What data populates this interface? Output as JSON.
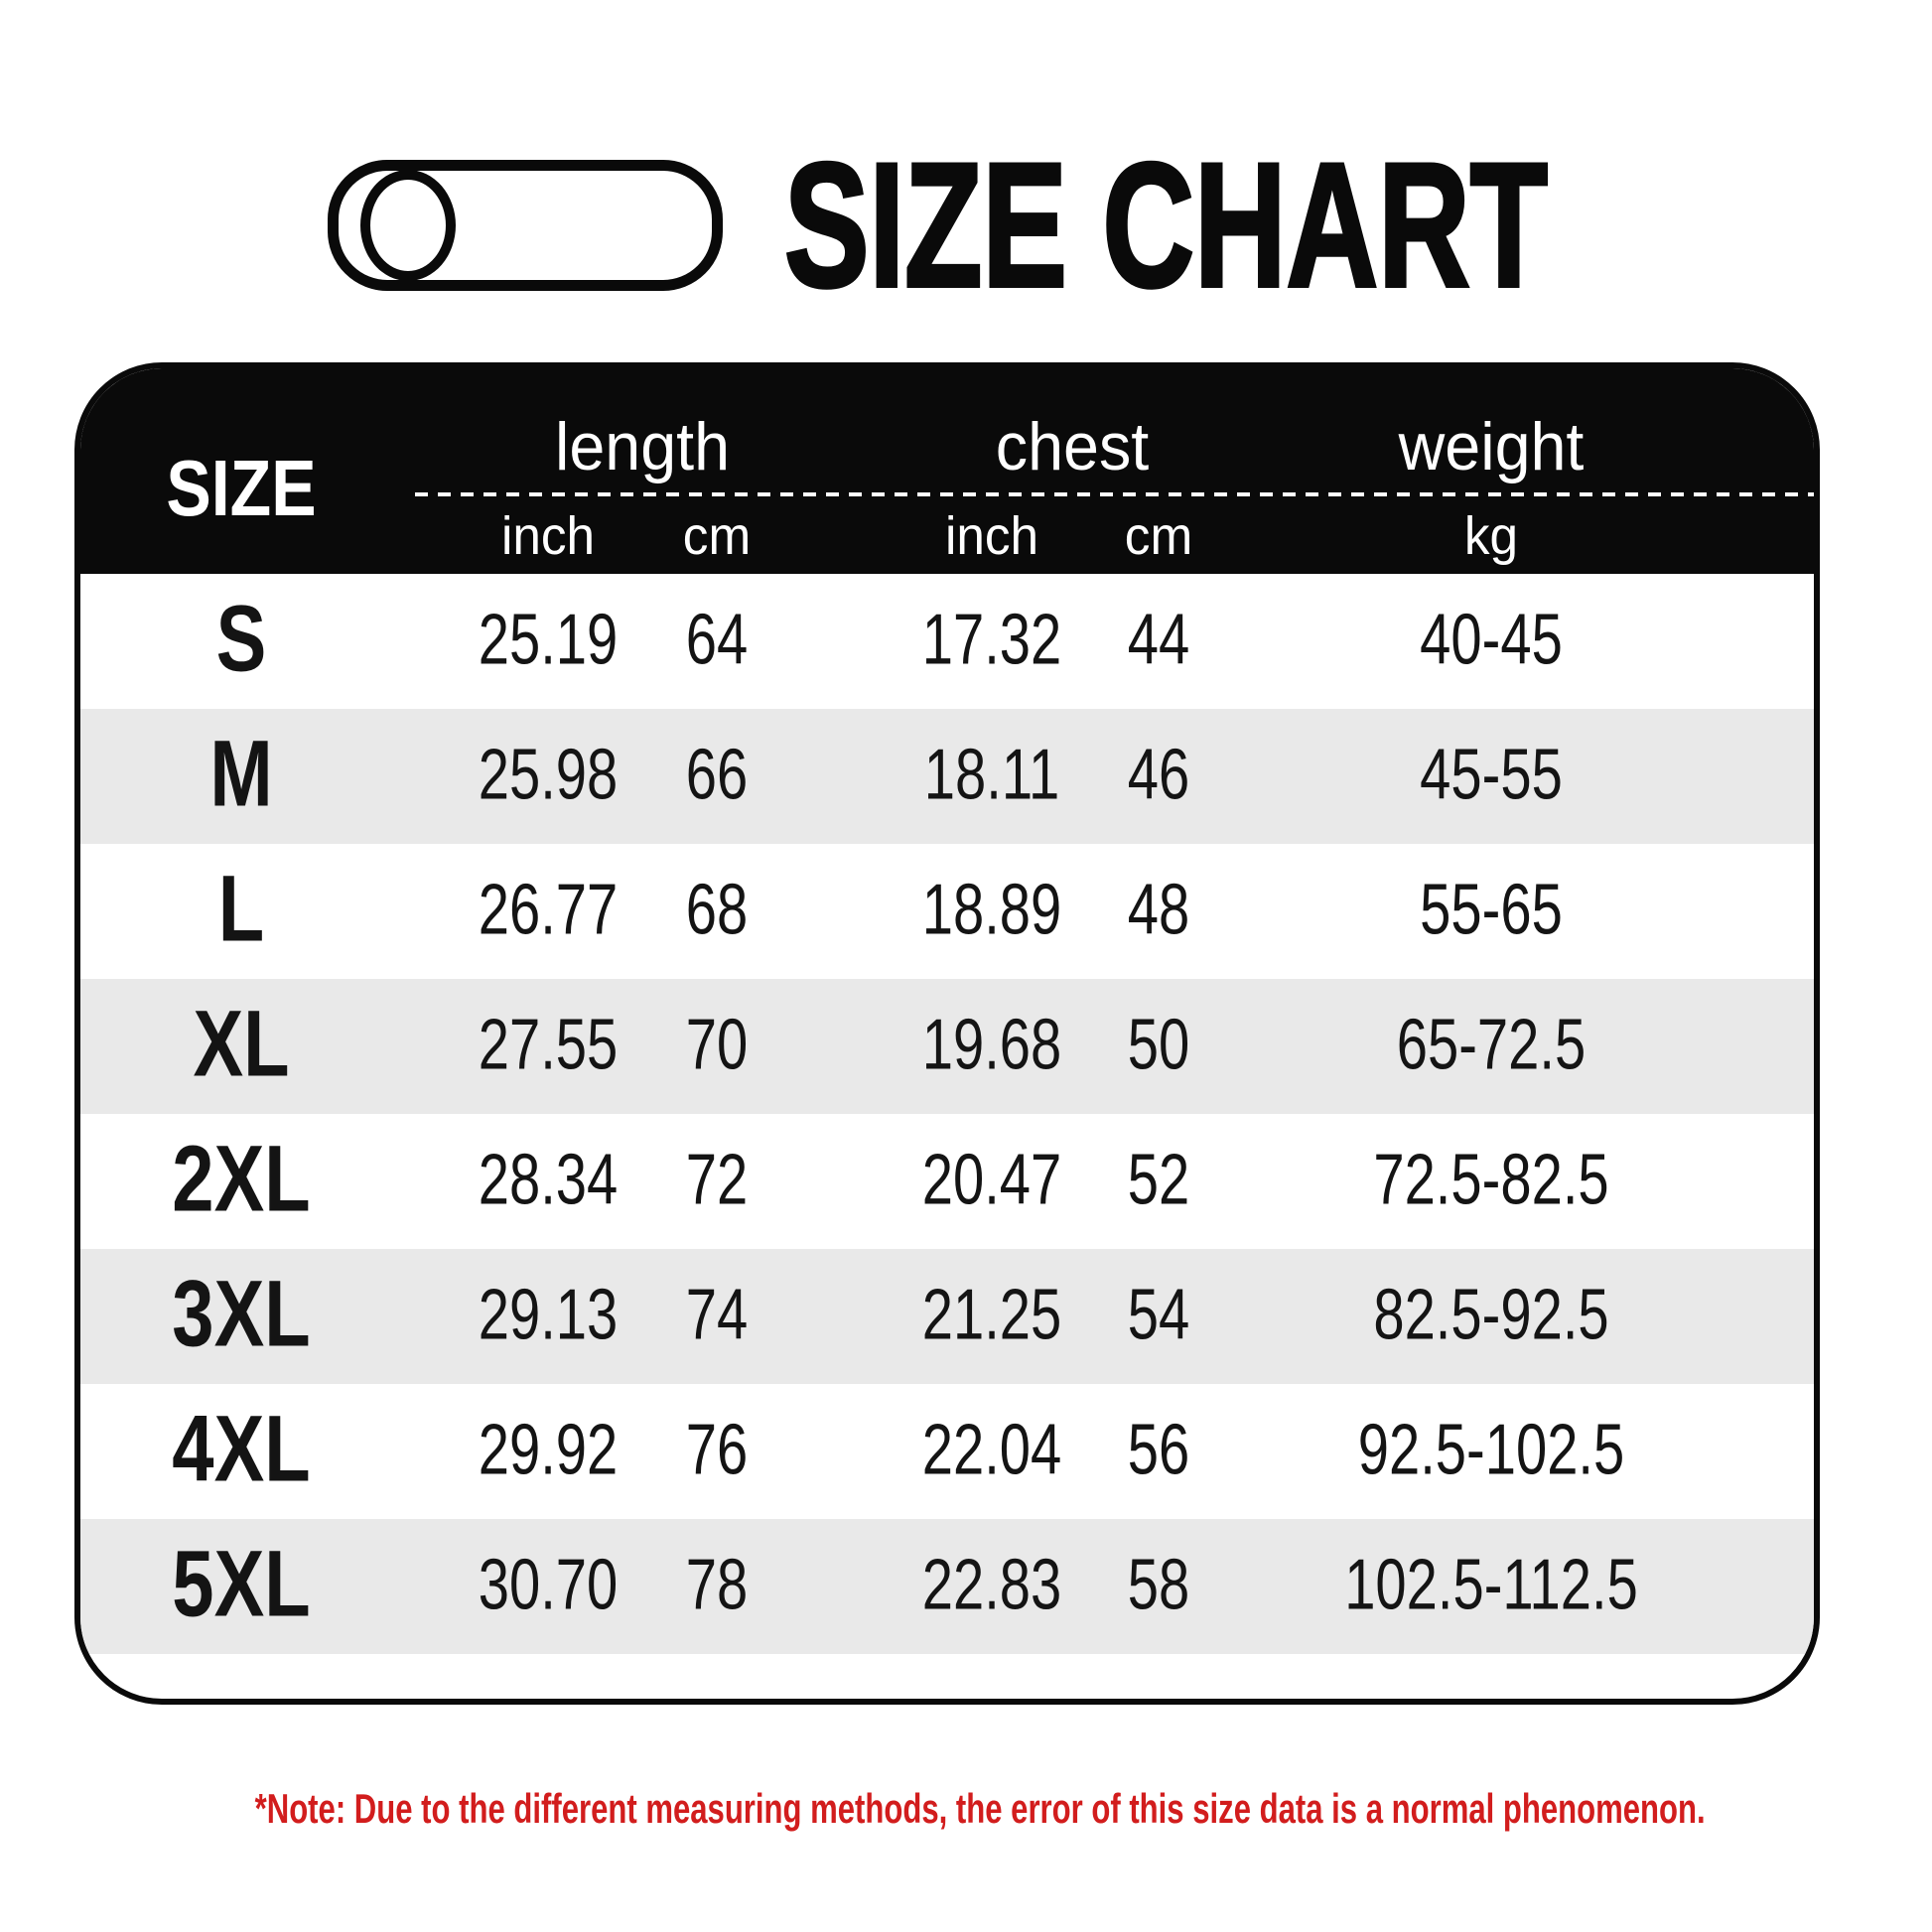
{
  "title": "SIZE CHART",
  "note": "*Note: Due to the different measuring methods, the error of this size data is a normal phenomenon.",
  "colors": {
    "header_bg": "#0a0a0a",
    "table_border": "#0a0a0a",
    "alt_row_gray": "#e9e9e9",
    "note_red": "#d21d1d",
    "header_text": "#ffffff"
  },
  "icons": {
    "capsule": "capsule-toggle-outline"
  },
  "chart_data": {
    "type": "table",
    "title": "SIZE CHART",
    "corner_header": "SIZE",
    "column_groups": [
      "length",
      "chest",
      "weight"
    ],
    "units": [
      "inch",
      "cm",
      "inch",
      "cm",
      "kg"
    ],
    "columns": [
      "SIZE",
      "length inch",
      "length cm",
      "chest inch",
      "chest cm",
      "weight kg"
    ],
    "rows": [
      [
        "S",
        "25.19",
        "64",
        "17.32",
        "44",
        "40-45"
      ],
      [
        "M",
        "25.98",
        "66",
        "18.11",
        "46",
        "45-55"
      ],
      [
        "L",
        "26.77",
        "68",
        "18.89",
        "48",
        "55-65"
      ],
      [
        "XL",
        "27.55",
        "70",
        "19.68",
        "50",
        "65-72.5"
      ],
      [
        "2XL",
        "28.34",
        "72",
        "20.47",
        "52",
        "72.5-82.5"
      ],
      [
        "3XL",
        "29.13",
        "74",
        "21.25",
        "54",
        "82.5-92.5"
      ],
      [
        "4XL",
        "29.92",
        "76",
        "22.04",
        "56",
        "92.5-102.5"
      ],
      [
        "5XL",
        "30.70",
        "78",
        "22.83",
        "58",
        "102.5-112.5"
      ]
    ],
    "layout": {
      "grid": false,
      "alternating_rows": true,
      "header_position": "top"
    }
  }
}
